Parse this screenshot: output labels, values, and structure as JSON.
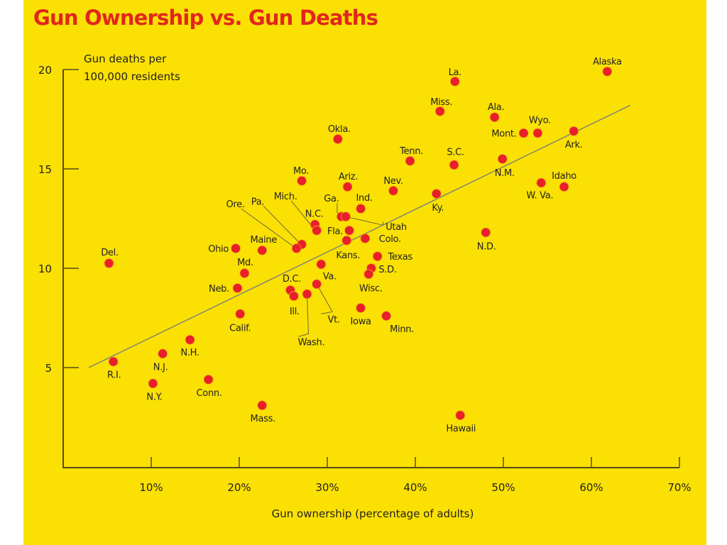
{
  "chart_data": {
    "type": "scatter",
    "title": "Gun Ownership vs. Gun Deaths",
    "xlabel": "Gun ownership (percentage of adults)",
    "ylabel": "Gun deaths per 100,000 residents",
    "ylabel_lines": [
      "Gun deaths per",
      "100,000 residents"
    ],
    "xlim": [
      0,
      70
    ],
    "ylim": [
      0,
      20
    ],
    "x_ticks": [
      {
        "value": 10,
        "label": "10%"
      },
      {
        "value": 20,
        "label": "20%"
      },
      {
        "value": 30,
        "label": "30%"
      },
      {
        "value": 40,
        "label": "40%"
      },
      {
        "value": 50,
        "label": "50%"
      },
      {
        "value": 60,
        "label": "60%"
      },
      {
        "value": 70,
        "label": "70%"
      }
    ],
    "y_ticks": [
      {
        "value": 5,
        "label": "5"
      },
      {
        "value": 10,
        "label": "10"
      },
      {
        "value": 15,
        "label": "15"
      },
      {
        "value": 20,
        "label": "20"
      }
    ],
    "grid": false,
    "colors": {
      "background": "#fae103",
      "point": "#e8202a",
      "title": "#e2261d",
      "axis": "#5b4a17",
      "trend": "#8c8a6a",
      "text": "#231f20"
    },
    "trend_line": {
      "x": [
        2.9,
        64.4
      ],
      "y": [
        5.0,
        18.2
      ]
    },
    "points": [
      {
        "label": "Alaska",
        "x": 61.8,
        "y": 19.9
      },
      {
        "label": "La.",
        "x": 44.5,
        "y": 19.4
      },
      {
        "label": "Miss.",
        "x": 42.8,
        "y": 17.9
      },
      {
        "label": "Ala.",
        "x": 49.0,
        "y": 17.6
      },
      {
        "label": "Mont.",
        "x": 52.3,
        "y": 16.8
      },
      {
        "label": "Wyo.",
        "x": 53.9,
        "y": 16.8
      },
      {
        "label": "Ark.",
        "x": 58.0,
        "y": 16.9
      },
      {
        "label": "Okla.",
        "x": 31.2,
        "y": 16.5
      },
      {
        "label": "Tenn.",
        "x": 39.4,
        "y": 15.4
      },
      {
        "label": "S.C.",
        "x": 44.4,
        "y": 15.2
      },
      {
        "label": "N.M.",
        "x": 49.9,
        "y": 15.5
      },
      {
        "label": "Mo.",
        "x": 27.1,
        "y": 14.4
      },
      {
        "label": "Ariz.",
        "x": 32.3,
        "y": 14.1
      },
      {
        "label": "Nev.",
        "x": 37.5,
        "y": 13.9
      },
      {
        "label": "Ky.",
        "x": 42.4,
        "y": 13.75
      },
      {
        "label": "W. Va.",
        "x": 54.3,
        "y": 14.3
      },
      {
        "label": "Idaho",
        "x": 56.9,
        "y": 14.1
      },
      {
        "label": "Ind.",
        "x": 33.8,
        "y": 13.0
      },
      {
        "label": "Ga.",
        "x": 31.6,
        "y": 12.6
      },
      {
        "label": "Utah",
        "x": 32.1,
        "y": 12.6
      },
      {
        "label": "N.C.",
        "x": 28.6,
        "y": 12.2
      },
      {
        "label": "Mich.",
        "x": 28.8,
        "y": 11.9
      },
      {
        "label": "Fla.",
        "x": 32.5,
        "y": 11.9
      },
      {
        "label": "Kans.",
        "x": 32.2,
        "y": 11.4
      },
      {
        "label": "Colo.",
        "x": 34.3,
        "y": 11.5
      },
      {
        "label": "Pa.",
        "x": 27.1,
        "y": 11.2
      },
      {
        "label": "Ore.",
        "x": 26.5,
        "y": 11.0
      },
      {
        "label": "Maine",
        "x": 22.6,
        "y": 10.9
      },
      {
        "label": "Ohio",
        "x": 19.6,
        "y": 11.0
      },
      {
        "label": "N.D.",
        "x": 48.0,
        "y": 11.8
      },
      {
        "label": "Texas",
        "x": 35.7,
        "y": 10.6
      },
      {
        "label": "S.D.",
        "x": 35.0,
        "y": 10.0
      },
      {
        "label": "Wisc.",
        "x": 34.7,
        "y": 9.7
      },
      {
        "label": "Va.",
        "x": 29.3,
        "y": 10.2
      },
      {
        "label": "Md.",
        "x": 20.6,
        "y": 9.75
      },
      {
        "label": "Del.",
        "x": 5.2,
        "y": 10.25
      },
      {
        "label": "Neb.",
        "x": 19.8,
        "y": 9.0
      },
      {
        "label": "D.C.",
        "x": 25.8,
        "y": 8.9
      },
      {
        "label": "Ill.",
        "x": 26.2,
        "y": 8.6
      },
      {
        "label": "Wash.",
        "x": 27.7,
        "y": 8.7
      },
      {
        "label": "Vt.",
        "x": 28.8,
        "y": 9.2
      },
      {
        "label": "Iowa",
        "x": 33.8,
        "y": 8.0
      },
      {
        "label": "Minn.",
        "x": 36.7,
        "y": 7.6
      },
      {
        "label": "Calif.",
        "x": 20.1,
        "y": 7.7
      },
      {
        "label": "N.H.",
        "x": 14.4,
        "y": 6.4
      },
      {
        "label": "N.J.",
        "x": 11.3,
        "y": 5.7
      },
      {
        "label": "R.I.",
        "x": 5.7,
        "y": 5.3
      },
      {
        "label": "N.Y.",
        "x": 10.2,
        "y": 4.2
      },
      {
        "label": "Conn.",
        "x": 16.5,
        "y": 4.4
      },
      {
        "label": "Mass.",
        "x": 22.6,
        "y": 3.1
      },
      {
        "label": "Hawaii",
        "x": 45.1,
        "y": 2.6
      }
    ]
  }
}
